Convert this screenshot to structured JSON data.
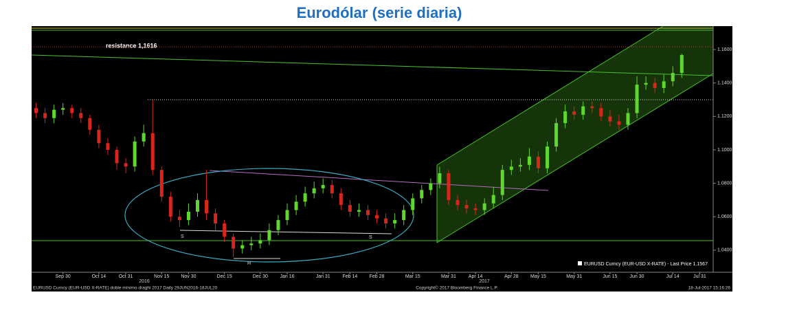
{
  "chart_data": {
    "type": "candlestick",
    "title": "Eurodólar (serie diaria)",
    "categories": [
      null,
      null,
      null,
      "Sep 30",
      null,
      null,
      null,
      "Oct 14",
      null,
      null,
      "Oct 31",
      null,
      null,
      null,
      "Nov 15",
      null,
      null,
      "Nov 30",
      null,
      null,
      null,
      "Dec 15",
      null,
      null,
      null,
      "Dec 30",
      null,
      null,
      "Jan 16",
      null,
      null,
      null,
      "Jan 31",
      null,
      null,
      "Feb 14",
      null,
      null,
      "Feb 28",
      null,
      null,
      null,
      "Mar 15",
      null,
      null,
      null,
      "Mar 31",
      null,
      null,
      "Apr 14",
      null,
      null,
      null,
      "Apr 28",
      null,
      null,
      "May 15",
      null,
      null,
      null,
      "May 31",
      null,
      null,
      null,
      "Jun 15",
      null,
      null,
      "Jun 30",
      null,
      null,
      null,
      "Jul 14",
      null,
      null,
      "Jul 31",
      null
    ],
    "years": [
      "2016",
      "2017"
    ],
    "series": [
      {
        "name": "EURUSD Curncy (EUR-USD X-RATE) - Last Price 1.1567",
        "up_color": "#5fd72e",
        "down_color": "#d8261c",
        "open": [
          1.125,
          1.122,
          1.119,
          1.124,
          1.125,
          1.122,
          1.119,
          1.112,
          1.104,
          1.1,
          1.092,
          1.09,
          1.105,
          1.11,
          1.088,
          1.072,
          1.06,
          1.058,
          1.063,
          1.07,
          1.062,
          1.056,
          1.048,
          1.041,
          1.043,
          1.044,
          1.046,
          1.052,
          1.058,
          1.064,
          1.069,
          1.074,
          1.077,
          1.079,
          1.074,
          1.067,
          1.063,
          1.064,
          1.061,
          1.059,
          1.056,
          1.058,
          1.064,
          1.071,
          1.076,
          1.08,
          1.086,
          1.07,
          1.067,
          1.065,
          1.064,
          1.068,
          1.073,
          1.088,
          1.09,
          1.091,
          1.096,
          1.089,
          1.102,
          1.116,
          1.123,
          1.121,
          1.126,
          1.125,
          1.12,
          1.117,
          1.115,
          1.122,
          1.139,
          1.14,
          1.137,
          1.141,
          1.146,
          null,
          null,
          null
        ],
        "high": [
          1.128,
          1.125,
          1.127,
          1.128,
          1.127,
          1.125,
          1.121,
          1.115,
          1.107,
          1.102,
          1.095,
          1.108,
          1.115,
          1.13,
          1.09,
          1.075,
          1.064,
          1.068,
          1.074,
          1.088,
          1.065,
          1.058,
          1.05,
          1.046,
          1.048,
          1.05,
          1.056,
          1.061,
          1.068,
          1.073,
          1.078,
          1.081,
          1.083,
          1.082,
          1.077,
          1.07,
          1.068,
          1.067,
          1.064,
          1.062,
          1.062,
          1.067,
          1.074,
          1.079,
          1.083,
          1.09,
          1.088,
          1.073,
          1.07,
          1.068,
          1.071,
          1.078,
          1.091,
          1.094,
          1.095,
          1.101,
          1.099,
          1.105,
          1.119,
          1.127,
          1.126,
          1.129,
          1.129,
          1.128,
          1.124,
          1.121,
          1.125,
          1.144,
          1.144,
          1.143,
          1.145,
          1.15,
          1.1575,
          null,
          null,
          null
        ],
        "low": [
          1.119,
          1.116,
          1.116,
          1.121,
          1.119,
          1.116,
          1.109,
          1.101,
          1.097,
          1.088,
          1.086,
          1.087,
          1.102,
          1.085,
          1.069,
          1.057,
          1.054,
          1.055,
          1.06,
          1.058,
          1.052,
          1.045,
          1.036,
          1.038,
          1.04,
          1.041,
          1.043,
          1.049,
          1.055,
          1.061,
          1.066,
          1.071,
          1.074,
          1.071,
          1.064,
          1.06,
          1.06,
          1.058,
          1.056,
          1.053,
          1.053,
          1.055,
          1.061,
          1.068,
          1.073,
          1.077,
          1.067,
          1.064,
          1.062,
          1.061,
          1.061,
          1.065,
          1.07,
          1.085,
          1.087,
          1.088,
          1.086,
          1.086,
          1.099,
          1.113,
          1.118,
          1.118,
          1.122,
          1.117,
          1.114,
          1.112,
          1.112,
          1.119,
          1.136,
          1.134,
          1.134,
          1.138,
          1.143,
          null,
          null,
          null
        ],
        "close": [
          1.122,
          1.119,
          1.124,
          1.125,
          1.122,
          1.119,
          1.112,
          1.104,
          1.1,
          1.092,
          1.09,
          1.105,
          1.11,
          1.088,
          1.072,
          1.06,
          1.058,
          1.063,
          1.07,
          1.062,
          1.056,
          1.048,
          1.041,
          1.043,
          1.044,
          1.046,
          1.052,
          1.058,
          1.064,
          1.069,
          1.074,
          1.077,
          1.079,
          1.074,
          1.067,
          1.063,
          1.064,
          1.061,
          1.059,
          1.056,
          1.058,
          1.064,
          1.071,
          1.076,
          1.08,
          1.086,
          1.07,
          1.067,
          1.065,
          1.064,
          1.068,
          1.073,
          1.088,
          1.09,
          1.091,
          1.096,
          1.089,
          1.102,
          1.116,
          1.123,
          1.121,
          1.126,
          1.125,
          1.12,
          1.117,
          1.115,
          1.122,
          1.139,
          1.14,
          1.137,
          1.141,
          1.146,
          1.1567,
          null,
          null,
          null
        ]
      }
    ],
    "ylim": [
      1.0268,
      1.174
    ],
    "yticks": [
      {
        "value": 1.04,
        "label": "1.0400"
      },
      {
        "value": 1.06,
        "label": "1.0600"
      },
      {
        "value": 1.08,
        "label": "1.0800"
      },
      {
        "value": 1.1,
        "label": "1.1000"
      },
      {
        "value": 1.12,
        "label": "1.1200"
      },
      {
        "value": 1.14,
        "label": "1.1400"
      },
      {
        "value": 1.16,
        "label": "1.1600"
      }
    ],
    "resistance": {
      "label": "resistance 1,1616",
      "value": 1.1616
    },
    "pattern_labels": [
      "S",
      "S",
      "H"
    ],
    "footer": {
      "left": "EURUSD Curncy (EUR-USD X-RATE) doble mínimo draghi 2017   Daily 29JUN2016-18JUL20",
      "center": "Copyright© 2017 Bloomberg Finance L.P.",
      "right": "18-Jul-2017 15:16:26"
    }
  }
}
